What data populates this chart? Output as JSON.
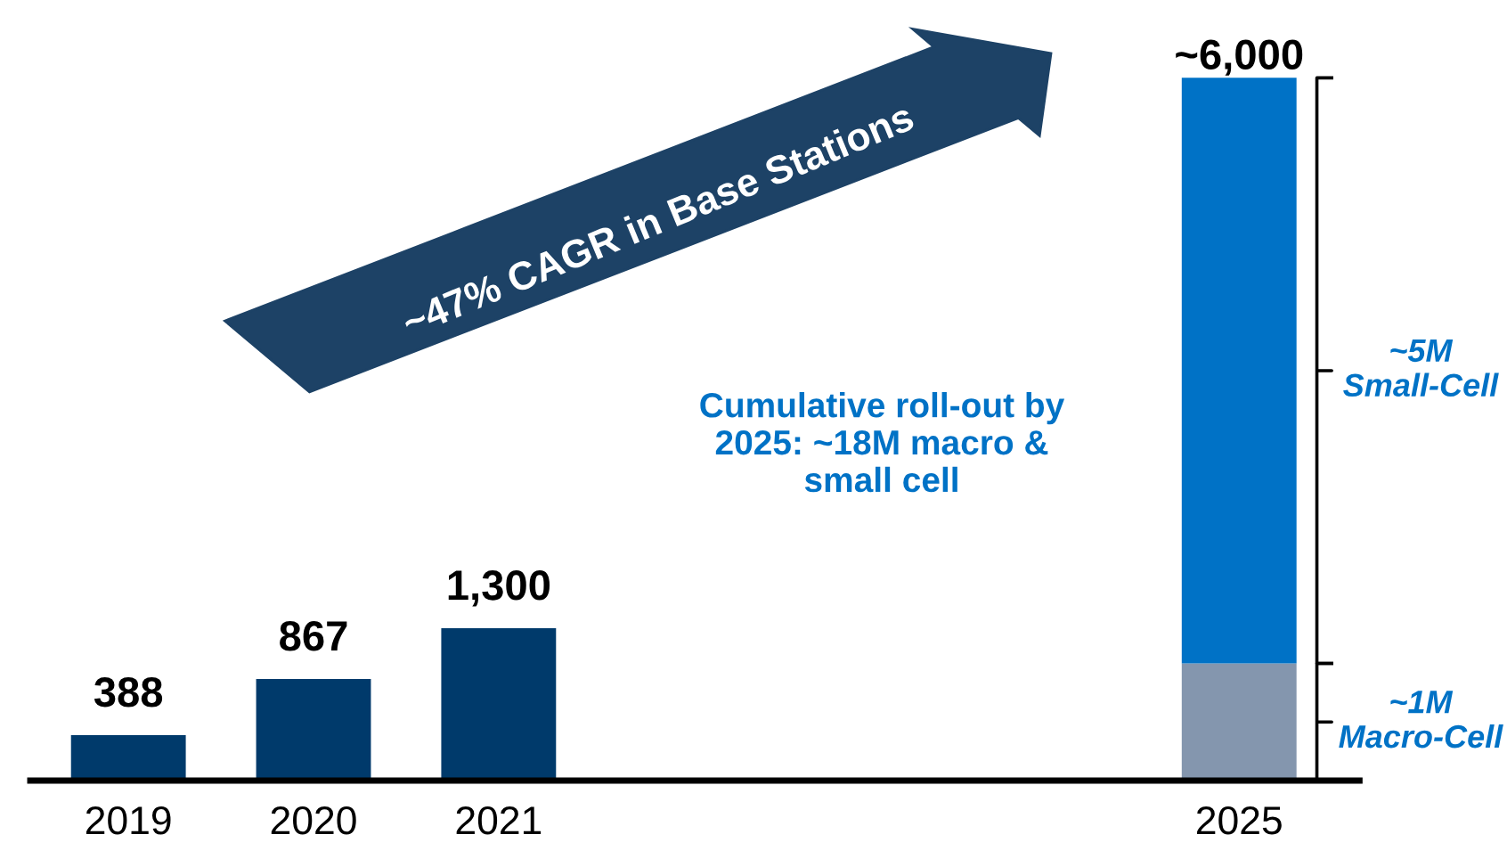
{
  "chart_data": {
    "type": "bar",
    "stacked": true,
    "categories": [
      "2019",
      "2020",
      "2021",
      null,
      null,
      null,
      "2025"
    ],
    "series": [
      {
        "color": "#003a6b",
        "values": [
          388,
          867,
          1300,
          null,
          null,
          null,
          null
        ],
        "value_labels": [
          "388",
          "867",
          "1,300",
          null,
          null,
          null,
          null
        ]
      },
      {
        "name": "~1M Macro-Cell",
        "color": "#8496ae",
        "values": [
          null,
          null,
          null,
          null,
          null,
          null,
          1000
        ]
      },
      {
        "name": "~5M Small-Cell",
        "color": "#0072c6",
        "values": [
          null,
          null,
          null,
          null,
          null,
          null,
          5000
        ]
      }
    ],
    "totals": [
      null,
      null,
      null,
      null,
      null,
      null,
      "~6,000"
    ],
    "annotations": [
      "~47% CAGR in Base Stations",
      "Cumulative roll-out by 2025: ~18M macro & small cell"
    ],
    "grid": false,
    "legend": false,
    "tick_labels": "x"
  }
}
